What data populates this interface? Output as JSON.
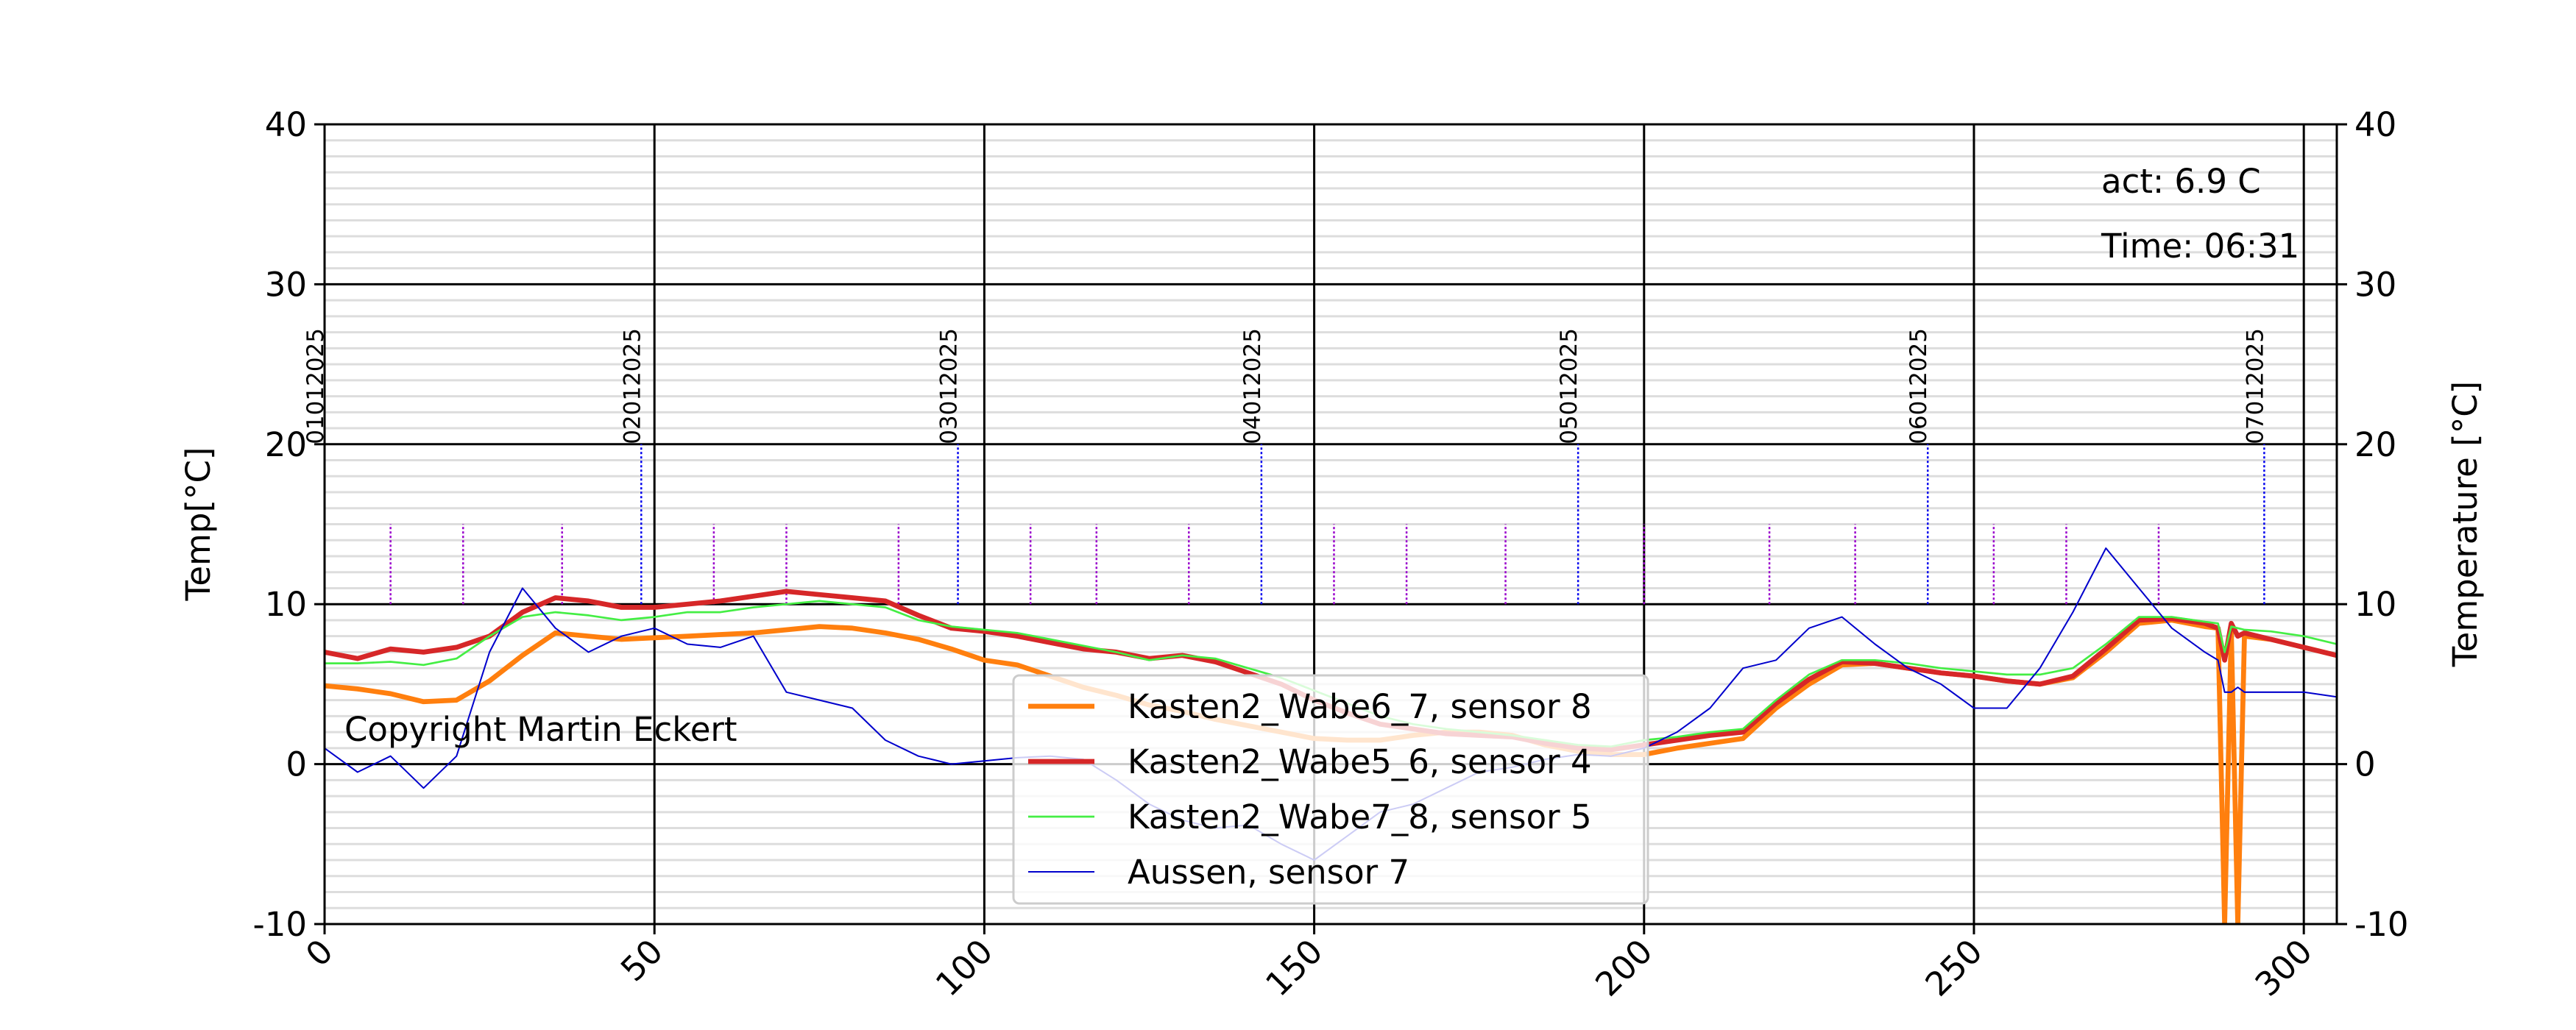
{
  "chart_data": {
    "type": "line",
    "y_label": "Temp[°C]",
    "y2_label": "Temperature [°C]",
    "annotations": [
      "act: 6.9 C",
      "Time: 06:31",
      "Copyright Martin Eckert"
    ],
    "x": [
      0,
      5,
      10,
      15,
      20,
      25,
      30,
      35,
      40,
      45,
      50,
      55,
      60,
      65,
      70,
      75,
      80,
      85,
      90,
      95,
      100,
      105,
      110,
      115,
      120,
      125,
      130,
      135,
      140,
      145,
      150,
      155,
      160,
      165,
      170,
      175,
      180,
      185,
      190,
      195,
      200,
      205,
      210,
      215,
      220,
      225,
      230,
      235,
      240,
      245,
      250,
      255,
      260,
      265,
      270,
      275,
      280,
      285,
      287,
      288,
      289,
      290,
      291,
      295,
      300,
      305
    ],
    "series": [
      {
        "name": "Kasten2_Wabe6_7, sensor 8",
        "color": "#ff7f0e",
        "width": 3,
        "values": [
          4.9,
          4.7,
          4.4,
          3.9,
          4.0,
          5.2,
          6.8,
          8.2,
          8.0,
          7.8,
          7.9,
          8.0,
          8.1,
          8.2,
          8.4,
          8.6,
          8.5,
          8.2,
          7.8,
          7.2,
          6.5,
          6.2,
          5.5,
          4.8,
          4.3,
          3.7,
          3.3,
          2.8,
          2.4,
          2.0,
          1.6,
          1.5,
          1.5,
          1.8,
          2.0,
          2.0,
          1.8,
          1.2,
          0.8,
          0.6,
          0.6,
          1.0,
          1.3,
          1.6,
          3.5,
          5.0,
          6.2,
          6.3,
          6.0,
          5.7,
          5.5,
          5.2,
          5.0,
          5.4,
          7.0,
          8.8,
          9.0,
          8.6,
          8.5,
          -10,
          8.4,
          -10,
          8.0,
          7.8,
          7.3,
          6.8
        ]
      },
      {
        "name": "Kasten2_Wabe5_6, sensor 4",
        "color": "#d62728",
        "width": 3,
        "values": [
          7.0,
          6.6,
          7.2,
          7.0,
          7.3,
          8.0,
          9.5,
          10.4,
          10.2,
          9.8,
          9.8,
          10.0,
          10.2,
          10.5,
          10.8,
          10.6,
          10.4,
          10.2,
          9.3,
          8.5,
          8.3,
          8.0,
          7.6,
          7.2,
          7.0,
          6.6,
          6.8,
          6.4,
          5.7,
          5.0,
          4.0,
          3.2,
          2.5,
          2.2,
          1.9,
          1.8,
          1.7,
          1.3,
          1.0,
          0.9,
          1.2,
          1.5,
          1.8,
          2.0,
          3.8,
          5.3,
          6.4,
          6.3,
          6.0,
          5.7,
          5.5,
          5.2,
          5.0,
          5.5,
          7.2,
          9.0,
          9.1,
          8.8,
          8.5,
          6.5,
          8.8,
          8.0,
          8.2,
          7.8,
          7.3,
          6.8
        ]
      },
      {
        "name": "Kasten2_Wabe7_8, sensor 5",
        "color": "#44ee44",
        "width": 1.2,
        "values": [
          6.3,
          6.3,
          6.4,
          6.2,
          6.6,
          8.0,
          9.2,
          9.5,
          9.3,
          9.0,
          9.2,
          9.5,
          9.5,
          9.8,
          10.0,
          10.2,
          10.0,
          9.8,
          9.0,
          8.6,
          8.4,
          8.2,
          7.8,
          7.4,
          7.0,
          6.5,
          6.8,
          6.6,
          6.0,
          5.4,
          4.6,
          3.8,
          3.0,
          2.5,
          2.2,
          2.0,
          1.8,
          1.5,
          1.2,
          1.1,
          1.5,
          1.7,
          2.0,
          2.2,
          4.0,
          5.6,
          6.5,
          6.5,
          6.3,
          6.0,
          5.8,
          5.6,
          5.6,
          6.0,
          7.5,
          9.2,
          9.2,
          8.9,
          8.8,
          7.0,
          8.6,
          8.5,
          8.4,
          8.3,
          8.0,
          7.5
        ]
      },
      {
        "name": "Aussen, sensor 7",
        "color": "#0000cc",
        "width": 0.9,
        "values": [
          1.0,
          -0.5,
          0.5,
          -1.5,
          0.5,
          7.0,
          11.0,
          8.5,
          7.0,
          8.0,
          8.5,
          7.5,
          7.3,
          8.0,
          4.5,
          4.0,
          3.5,
          1.5,
          0.5,
          0.0,
          0.2,
          0.4,
          0.5,
          0.3,
          -1.0,
          -2.5,
          -3.5,
          -4.0,
          -3.8,
          -5.0,
          -6.0,
          -4.5,
          -3.0,
          -2.5,
          -1.5,
          -0.5,
          -0.2,
          0.3,
          0.6,
          0.5,
          1.0,
          2.0,
          3.5,
          6.0,
          6.5,
          8.5,
          9.2,
          7.5,
          6.0,
          5.0,
          3.5,
          3.5,
          6.0,
          9.5,
          13.5,
          11.0,
          8.5,
          7.0,
          6.5,
          4.5,
          4.5,
          4.8,
          4.5,
          4.5,
          4.5,
          4.2
        ]
      }
    ],
    "date_markers": [
      {
        "x": 0,
        "label": "01012025"
      },
      {
        "x": 48,
        "label": "02012025"
      },
      {
        "x": 96,
        "label": "03012025"
      },
      {
        "x": 142,
        "label": "04012025"
      },
      {
        "x": 190,
        "label": "05012025"
      },
      {
        "x": 243,
        "label": "06012025"
      },
      {
        "x": 294,
        "label": "07012025"
      }
    ],
    "date_marker_range": [
      10,
      20
    ],
    "sub_markers": [
      10,
      21,
      36,
      59,
      70,
      87,
      107,
      117,
      131,
      153,
      164,
      179,
      200,
      219,
      232,
      253,
      264,
      278
    ],
    "sub_marker_range": [
      10,
      15
    ],
    "xlim": [
      0,
      305
    ],
    "xticks": [
      0,
      50,
      100,
      150,
      200,
      250,
      300
    ],
    "ylim": [
      -10,
      40
    ],
    "yticks": [
      -10,
      0,
      10,
      20,
      30,
      40
    ],
    "y2lim": [
      -10,
      40
    ],
    "y2ticks": [
      -10,
      0,
      10,
      20,
      30,
      40
    ],
    "yminorticks": [
      -9,
      -8,
      -7,
      -6,
      -5,
      -4,
      -3,
      -2,
      -1,
      1,
      2,
      3,
      4,
      5,
      6,
      7,
      8,
      9,
      11,
      12,
      13,
      14,
      15,
      16,
      17,
      18,
      19,
      21,
      22,
      23,
      24,
      25,
      26,
      27,
      28,
      29,
      31,
      32,
      33,
      34,
      35,
      36,
      37,
      38,
      39
    ],
    "grid": true,
    "legend": "lower center"
  }
}
